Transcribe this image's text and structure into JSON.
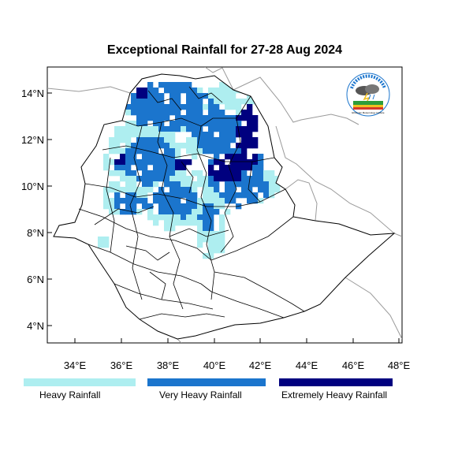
{
  "title": "Exceptional Rainfall for 27-28 Aug 2024",
  "axes": {
    "lat_labels": [
      "4°N",
      "6°N",
      "8°N",
      "10°N",
      "12°N",
      "14°N"
    ],
    "lon_labels": [
      "34°E",
      "36°E",
      "38°E",
      "40°E",
      "42°E",
      "44°E",
      "46°E",
      "48°E"
    ]
  },
  "legend": [
    {
      "label": "Heavy Rainfall",
      "color": "#aeeef0"
    },
    {
      "label": "Very Heavy Rainfall",
      "color": "#1b75cd"
    },
    {
      "label": "Extremely Heavy Rainfall",
      "color": "#00007f"
    }
  ],
  "colors": {
    "heavy": "#aeeef0",
    "very_heavy": "#1b75cd",
    "extremely_heavy": "#00007f",
    "boundary": "#000000",
    "neighbor_boundary": "#9a9a9a"
  },
  "logo": {
    "icon": "meteorology-agency-logo",
    "text": "Ethiopian Meteorology Institute"
  }
}
